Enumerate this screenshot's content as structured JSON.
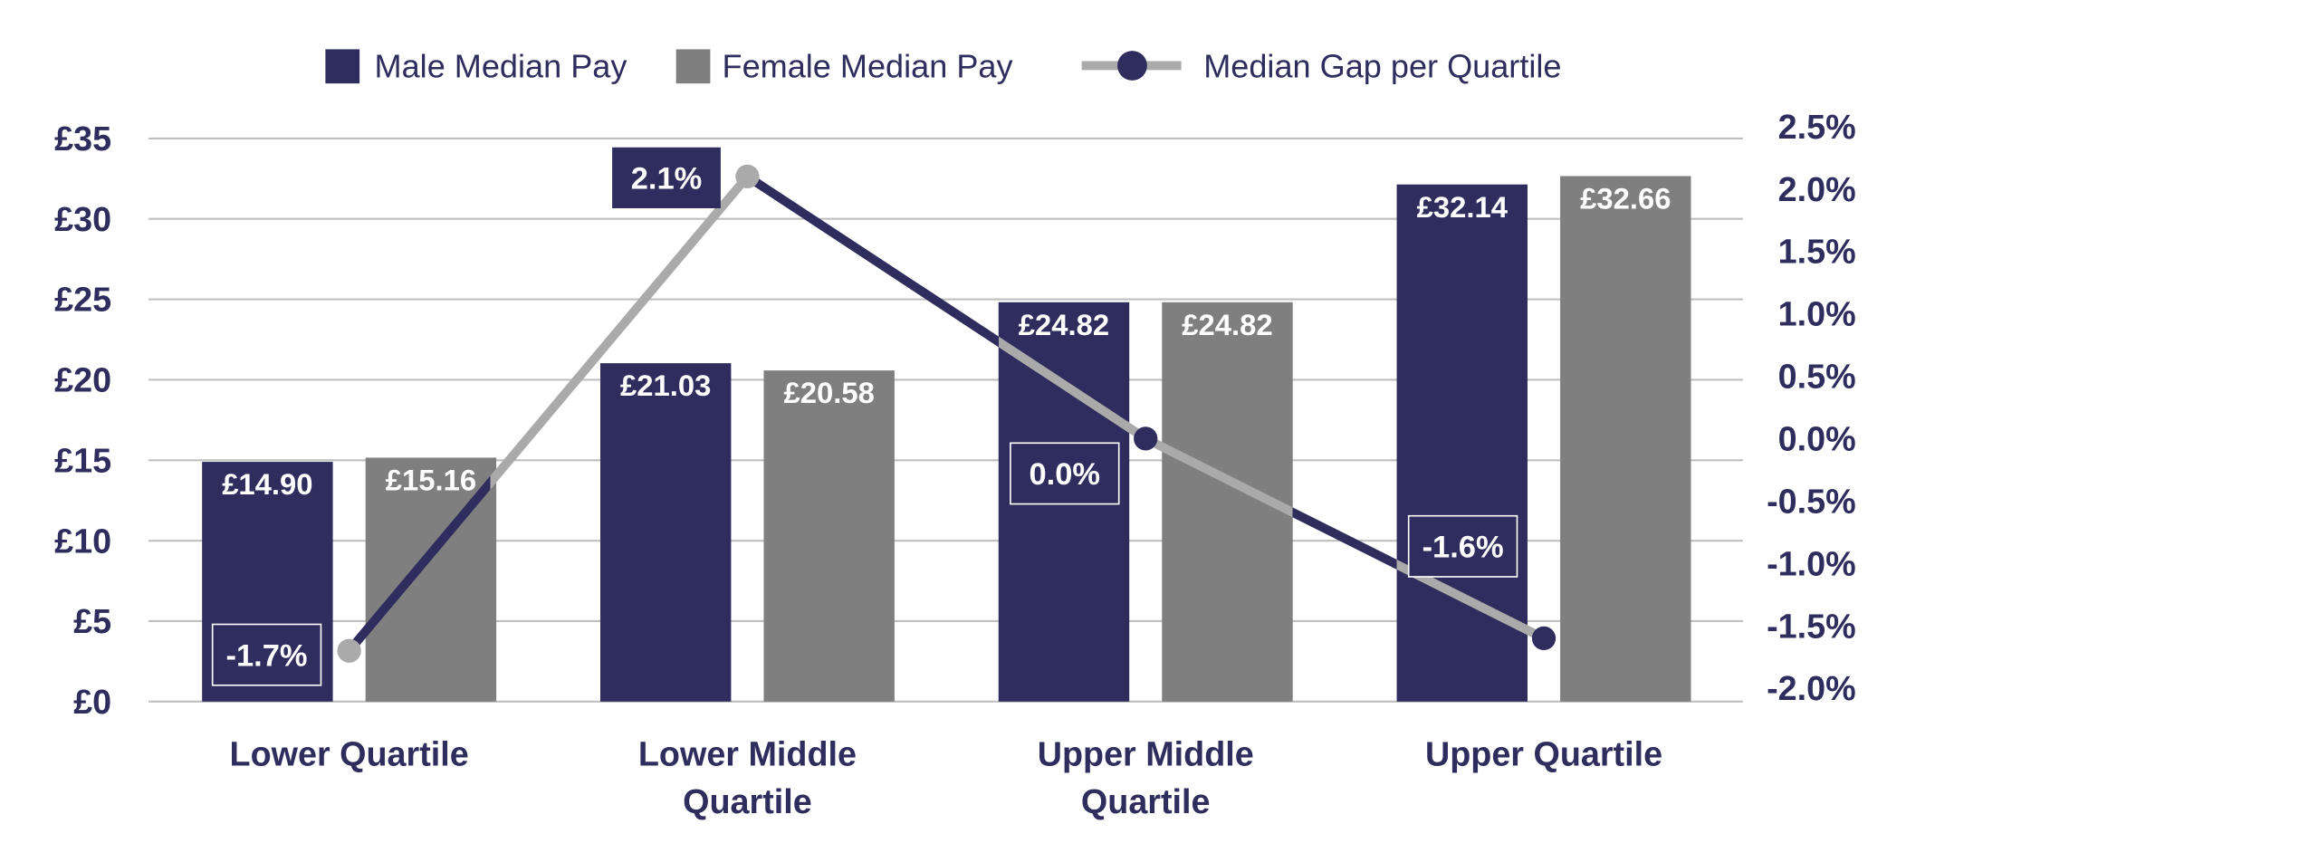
{
  "chart_data": {
    "type": "bar",
    "title": "",
    "categories": [
      [
        "Lower Quartile"
      ],
      [
        "Lower Middle",
        "Quartile"
      ],
      [
        "Upper Middle",
        "Quartile"
      ],
      [
        "Upper Quartile"
      ]
    ],
    "series": [
      {
        "name": "Male Median Pay",
        "type": "bar",
        "axis": "left",
        "color": "#2e2d5e",
        "values": [
          14.9,
          21.03,
          24.82,
          32.14
        ],
        "labels": [
          "£14.90",
          "£21.03",
          "£24.82",
          "£32.14"
        ]
      },
      {
        "name": "Female Median Pay",
        "type": "bar",
        "axis": "left",
        "color": "#7f7f7f",
        "values": [
          15.16,
          20.58,
          24.82,
          32.66
        ],
        "labels": [
          "£15.16",
          "£20.58",
          "£24.82",
          "£32.66"
        ]
      },
      {
        "name": "Median Gap per Quartile",
        "type": "line",
        "axis": "right",
        "color": "#2e2d5e",
        "alt_color": "#aaaaaa",
        "values": [
          -1.7,
          2.1,
          0.0,
          -1.6
        ],
        "labels": [
          "-1.7%",
          "2.1%",
          "0.0%",
          "-1.6%"
        ]
      }
    ],
    "y_left": {
      "min": 0,
      "max": 35,
      "step": 5,
      "ticks": [
        "£0",
        "£5",
        "£10",
        "£15",
        "£20",
        "£25",
        "£30",
        "£35"
      ]
    },
    "y_right": {
      "min": -2.0,
      "max": 2.5,
      "step": 0.5,
      "ticks": [
        "-2.0%",
        "-1.5%",
        "-1.0%",
        "-0.5%",
        "0.0%",
        "0.5%",
        "1.0%",
        "1.5%",
        "2.0%",
        "2.5%"
      ]
    },
    "grid": true,
    "legend_position": "top"
  }
}
